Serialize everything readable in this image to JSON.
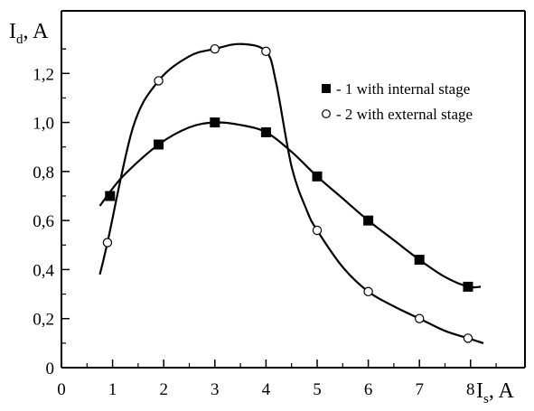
{
  "chart_data": {
    "type": "line",
    "title": "",
    "xlabel": {
      "main": "I",
      "sub": "s",
      "unit": ", A"
    },
    "ylabel": {
      "main": "I",
      "sub": "d",
      "unit": ", A"
    },
    "xlim": [
      0,
      8.8
    ],
    "ylim": [
      0,
      1.4
    ],
    "x_ticks": [
      0,
      1,
      2,
      3,
      4,
      5,
      6,
      7,
      8
    ],
    "x_tick_labels": [
      "0",
      "1",
      "2",
      "3",
      "4",
      "5",
      "6",
      "7",
      "8"
    ],
    "y_ticks": [
      0,
      0.2,
      0.4,
      0.6,
      0.8,
      1.0,
      1.2
    ],
    "y_tick_labels": [
      "0",
      "0,2",
      "0,4",
      "0,6",
      "0,8",
      "1,0",
      "1,2"
    ],
    "grid": false,
    "legend_position": "top-right",
    "series": [
      {
        "name": "- 1 with internal stage",
        "marker": "filled-square",
        "x": [
          0.95,
          1.9,
          3.0,
          4.0,
          5.0,
          6.0,
          7.0,
          7.95
        ],
        "y": [
          0.7,
          0.91,
          1.0,
          0.96,
          0.78,
          0.6,
          0.44,
          0.33
        ],
        "curve": [
          [
            0.75,
            0.66
          ],
          [
            1.2,
            0.78
          ],
          [
            1.9,
            0.91
          ],
          [
            2.5,
            0.98
          ],
          [
            3.0,
            1.0
          ],
          [
            3.5,
            0.99
          ],
          [
            4.0,
            0.96
          ],
          [
            4.5,
            0.88
          ],
          [
            5.0,
            0.78
          ],
          [
            5.5,
            0.69
          ],
          [
            6.0,
            0.6
          ],
          [
            6.5,
            0.52
          ],
          [
            7.0,
            0.44
          ],
          [
            7.5,
            0.37
          ],
          [
            7.95,
            0.33
          ],
          [
            8.2,
            0.33
          ]
        ]
      },
      {
        "name": "- 2 with external stage",
        "marker": "open-circle",
        "x": [
          0.9,
          1.9,
          3.0,
          4.0,
          5.0,
          6.0,
          7.0,
          7.95
        ],
        "y": [
          0.51,
          1.17,
          1.3,
          1.29,
          0.56,
          0.31,
          0.2,
          0.12
        ],
        "curve": [
          [
            0.75,
            0.38
          ],
          [
            0.9,
            0.51
          ],
          [
            1.4,
            0.98
          ],
          [
            1.9,
            1.17
          ],
          [
            2.5,
            1.27
          ],
          [
            3.0,
            1.3
          ],
          [
            3.5,
            1.32
          ],
          [
            4.0,
            1.29
          ],
          [
            4.2,
            1.16
          ],
          [
            4.5,
            0.82
          ],
          [
            4.8,
            0.64
          ],
          [
            5.0,
            0.56
          ],
          [
            5.5,
            0.41
          ],
          [
            6.0,
            0.31
          ],
          [
            6.5,
            0.25
          ],
          [
            7.0,
            0.2
          ],
          [
            7.5,
            0.15
          ],
          [
            7.95,
            0.12
          ],
          [
            8.25,
            0.1
          ]
        ]
      }
    ]
  }
}
